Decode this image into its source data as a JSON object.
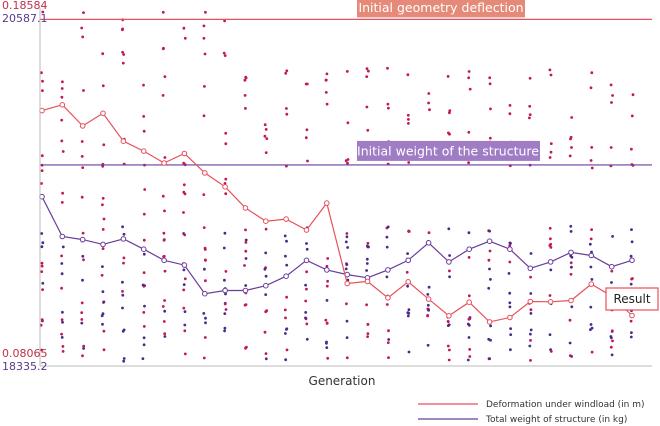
{
  "chart_data": {
    "type": "line",
    "xlabel": "Generation",
    "x": [
      1,
      2,
      3,
      4,
      5,
      6,
      7,
      8,
      9,
      10,
      11,
      12,
      13,
      14,
      15,
      16,
      17,
      18,
      19,
      20,
      21,
      22,
      23,
      24,
      25,
      26,
      27,
      28,
      29,
      30
    ],
    "y_axes": {
      "left_red": {
        "label_top": "0.18584",
        "label_bottom": "0.08065",
        "min": 0.08065,
        "max": 0.18584
      },
      "left_purple": {
        "label_top": "20587.1",
        "label_bottom": "18335.2",
        "min": 18335.2,
        "max": 20587.1
      }
    },
    "colors": {
      "deformation": "#e8505b",
      "weight": "#6a3d9a",
      "scatter_red": "#c2185b",
      "scatter_purple": "#4a2a8a",
      "axis": "#bbbbbb"
    },
    "series": [
      {
        "name": "Deformation under windload (in m)",
        "axis": "left_red",
        "values": [
          0.1557,
          0.1574,
          0.1512,
          0.1549,
          0.1467,
          0.1438,
          0.1403,
          0.1431,
          0.1374,
          0.1333,
          0.1271,
          0.1232,
          0.1238,
          0.1206,
          0.1285,
          0.1049,
          0.1055,
          0.1007,
          0.1054,
          0.1003,
          0.0954,
          0.0994,
          0.0936,
          0.0949,
          0.0996,
          0.0995,
          0.0999,
          0.1047,
          0.1012,
          0.0955
        ]
      },
      {
        "name": "Total weight of structure (in kg)",
        "axis": "left_purple",
        "values": [
          19400,
          19150,
          19130,
          19100,
          19135,
          19070,
          19000,
          18970,
          18790,
          18810,
          18810,
          18840,
          18900,
          19000,
          18940,
          18910,
          18890,
          18940,
          19000,
          19110,
          18990,
          19070,
          19120,
          19070,
          18950,
          18990,
          19050,
          19030,
          18960,
          19000
        ]
      }
    ],
    "reference_lines": [
      {
        "label": "Initial geometry deflection",
        "axis": "left_red",
        "value": 0.1825
      },
      {
        "label": "Initial weight of the structure",
        "axis": "left_purple",
        "value": 19600
      }
    ],
    "annotation": {
      "label": "Result",
      "generation": 30
    },
    "scatter_seed": 7,
    "legend_position": "bottom-right"
  }
}
